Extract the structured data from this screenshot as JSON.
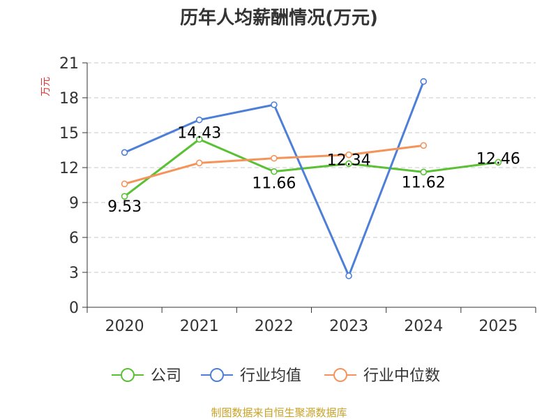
{
  "chart_data": {
    "type": "line",
    "title": "历年人均薪酬情况(万元)",
    "ylabel": "万元",
    "xlabel": "",
    "categories": [
      "2020",
      "2021",
      "2022",
      "2023",
      "2024",
      "2025"
    ],
    "ylim": [
      0,
      21
    ],
    "yticks": [
      0,
      3,
      6,
      9,
      12,
      15,
      18,
      21
    ],
    "grid": true,
    "legend_position": "bottom",
    "series": [
      {
        "name": "公司",
        "color": "#5ac134",
        "values": [
          9.53,
          14.43,
          11.66,
          12.34,
          11.62,
          12.46
        ],
        "labeled": true
      },
      {
        "name": "行业均值",
        "color": "#4e7fd8",
        "values": [
          13.3,
          16.1,
          17.4,
          2.7,
          19.4,
          null
        ],
        "labeled": false
      },
      {
        "name": "行业中位数",
        "color": "#f5945a",
        "values": [
          10.6,
          12.4,
          12.8,
          13.1,
          13.9,
          null
        ],
        "labeled": false
      }
    ],
    "data_labels": [
      "9.53",
      "14.43",
      "11.66",
      "12.34",
      "11.62",
      "12.46"
    ],
    "source": "制图数据来自恒生聚源数据库"
  }
}
